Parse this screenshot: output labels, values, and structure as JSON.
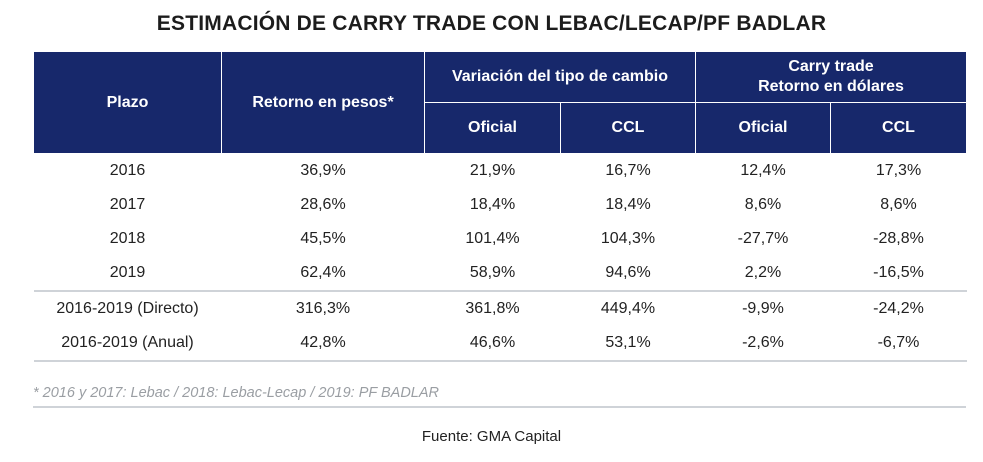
{
  "title": "ESTIMACIÓN DE CARRY TRADE CON LEBAC/LECAP/PF BADLAR",
  "headers": {
    "plazo": "Plazo",
    "retorno_pesos": "Retorno en pesos*",
    "variacion_tc": "Variación del tipo de cambio",
    "carry_line1": "Carry trade",
    "carry_line2": "Retorno en dólares",
    "oficial": "Oficial",
    "ccl": "CCL"
  },
  "rows": [
    [
      "2016",
      "36,9%",
      "21,9%",
      "16,7%",
      "12,4%",
      "17,3%"
    ],
    [
      "2017",
      "28,6%",
      "18,4%",
      "18,4%",
      "8,6%",
      "8,6%"
    ],
    [
      "2018",
      "45,5%",
      "101,4%",
      "104,3%",
      "-27,7%",
      "-28,8%"
    ],
    [
      "2019",
      "62,4%",
      "58,9%",
      "94,6%",
      "2,2%",
      "-16,5%"
    ],
    [
      "2016-2019 (Directo)",
      "316,3%",
      "361,8%",
      "449,4%",
      "-9,9%",
      "-24,2%"
    ],
    [
      "2016-2019 (Anual)",
      "42,8%",
      "46,6%",
      "53,1%",
      "-2,6%",
      "-6,7%"
    ]
  ],
  "footnote": "* 2016 y 2017: Lebac / 2018: Lebac-Lecap / 2019: PF BADLAR",
  "source": "Fuente: GMA Capital",
  "colors": {
    "header_bg": "#17286b",
    "header_text": "#ffffff",
    "rule": "#cfd3d8"
  }
}
